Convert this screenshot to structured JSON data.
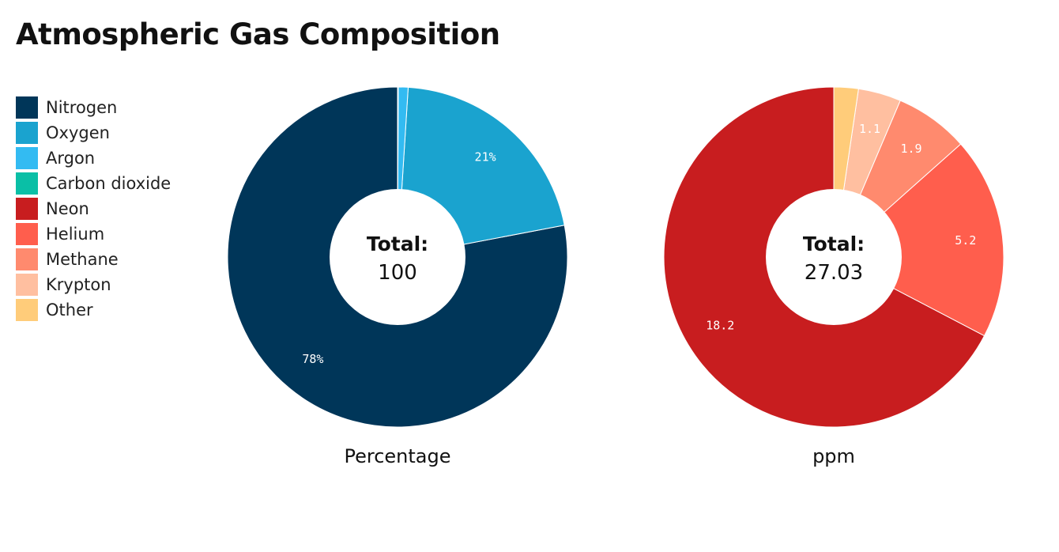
{
  "colors": {
    "Nitrogen": "#003659",
    "Oxygen": "#1aa3cf",
    "Argon": "#33bbf2",
    "Carbon dioxide": "#0abfa6",
    "Neon": "#c81d1f",
    "Helium": "#ff5e4d",
    "Methane": "#ff8a6e",
    "Krypton": "#ffbfa0",
    "Other": "#ffcc7a"
  },
  "chart_data": {
    "type": "pie",
    "variant": "donut",
    "title": "Atmospheric Gas Composition",
    "legend": [
      "Nitrogen",
      "Oxygen",
      "Argon",
      "Carbon dioxide",
      "Neon",
      "Helium",
      "Methane",
      "Krypton",
      "Other"
    ],
    "legend_position": "left",
    "charts": [
      {
        "name": "Percentage",
        "center_label": "Total:",
        "total": "100",
        "slices": [
          {
            "label": "Nitrogen",
            "value": 78,
            "text": "78%"
          },
          {
            "label": "Oxygen",
            "value": 21,
            "text": "21%"
          },
          {
            "label": "Argon",
            "value": 0.93,
            "text": ""
          },
          {
            "label": "Carbon dioxide",
            "value": 0.07,
            "text": ""
          }
        ]
      },
      {
        "name": "ppm",
        "center_label": "Total:",
        "total": "27.03",
        "slices": [
          {
            "label": "Neon",
            "value": 18.2,
            "text": "18.2"
          },
          {
            "label": "Helium",
            "value": 5.2,
            "text": "5.2"
          },
          {
            "label": "Methane",
            "value": 1.9,
            "text": "1.9"
          },
          {
            "label": "Krypton",
            "value": 1.1,
            "text": "1.1"
          },
          {
            "label": "Other",
            "value": 0.63,
            "text": ""
          }
        ]
      }
    ]
  }
}
